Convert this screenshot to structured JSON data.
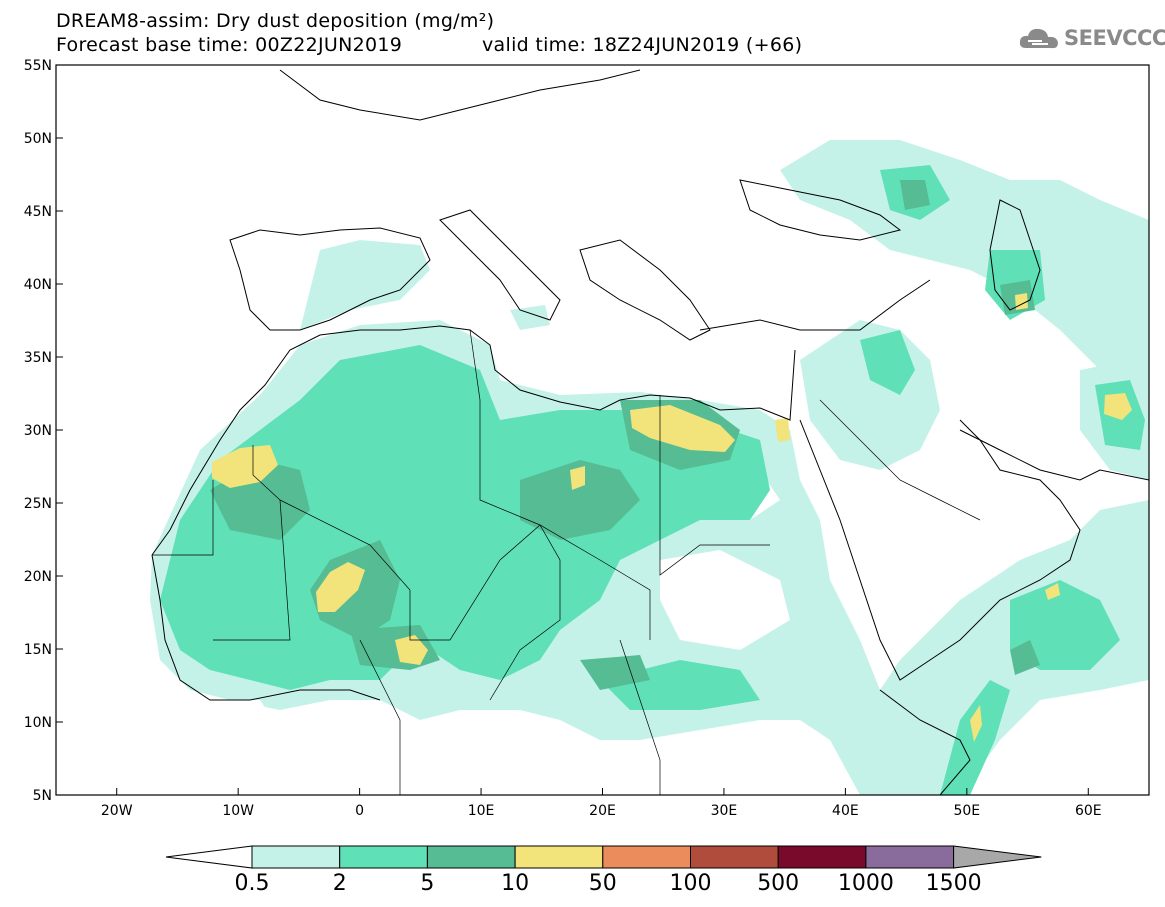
{
  "header": {
    "title": "DREAM8-assim: Dry dust deposition (mg/m²)",
    "forecast_base": "Forecast base time: 00Z22JUN2019",
    "valid_time": "valid time: 18Z24JUN2019 (+66)",
    "logo_text": "SEEVCCC",
    "logo_icon": "cloud-icon"
  },
  "map": {
    "projection": "lat-lon",
    "lon_range": [
      -25,
      65
    ],
    "lat_range": [
      5,
      55
    ],
    "lat_ticks": [
      "55N",
      "50N",
      "45N",
      "40N",
      "35N",
      "30N",
      "25N",
      "20N",
      "15N",
      "10N",
      "5N"
    ],
    "lon_ticks": [
      "20W",
      "10W",
      "0",
      "10E",
      "20E",
      "30E",
      "40E",
      "50E",
      "60E"
    ],
    "ocean_color": "#ffffff",
    "coastline_color": "#000000"
  },
  "colorbar": {
    "labels": [
      "0.5",
      "2",
      "5",
      "10",
      "50",
      "100",
      "500",
      "1000",
      "1500"
    ],
    "colors": [
      "#c5f2e8",
      "#5fe0b7",
      "#55bc94",
      "#f2e47a",
      "#ea8c5c",
      "#b04c3c",
      "#7a0a2c",
      "#8a6c9c",
      "#a8a8a8"
    ],
    "low_end_color": "#ffffff"
  }
}
